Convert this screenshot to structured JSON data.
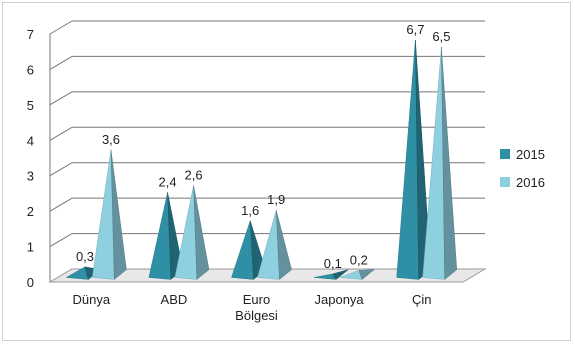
{
  "chart_data": {
    "type": "bar",
    "categories": [
      [
        "Dünya"
      ],
      [
        "ABD"
      ],
      [
        "Euro",
        "Bölgesi"
      ],
      [
        "Japonya"
      ],
      [
        "Çin"
      ]
    ],
    "series": [
      {
        "name": "2015",
        "values": [
          0.3,
          2.4,
          1.6,
          0.1,
          6.7
        ],
        "labels": [
          "0,3",
          "2,4",
          "1,6",
          "0,1",
          "6,7"
        ],
        "color": "#2e8fa5"
      },
      {
        "name": "2016",
        "values": [
          3.6,
          2.6,
          1.9,
          0.2,
          6.5
        ],
        "labels": [
          "3,6",
          "2,6",
          "1,9",
          "0,2",
          "6,5"
        ],
        "color": "#8ecfe0"
      }
    ],
    "yticks": [
      0,
      1,
      2,
      3,
      4,
      5,
      6,
      7
    ],
    "ylim": [
      0,
      7
    ],
    "grid": true,
    "legend_position": "right",
    "title": "",
    "xlabel": "",
    "ylabel": ""
  }
}
